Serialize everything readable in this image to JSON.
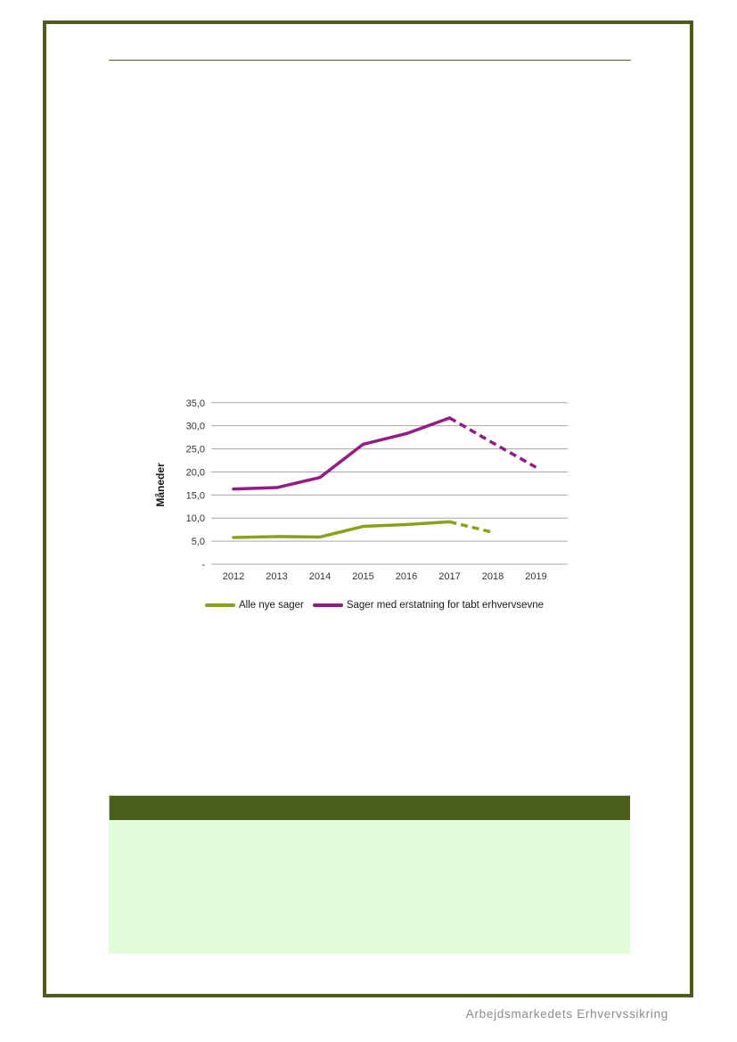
{
  "page": {
    "footer_brand": "Arbejdsmarkedets Erhvervssikring"
  },
  "colors": {
    "frame": "#4c5c1d",
    "top_rule": "#565f1e",
    "header_bar": "#4a5d1d",
    "highlight_box": "#e0fbd7",
    "footer_text": "#8c8c8c",
    "gridline": "#a6a6a6",
    "axis_text": "#333333"
  },
  "chart_data": {
    "type": "line",
    "x": [
      "2012",
      "2013",
      "2014",
      "2015",
      "2016",
      "2017",
      "2018",
      "2019"
    ],
    "ylabel": "Måneder",
    "xlabel": "",
    "title": "",
    "ylim": [
      0,
      35
    ],
    "grid": true,
    "legend_position": "bottom",
    "yticks": {
      "values": [
        35,
        30,
        25,
        20,
        15,
        10,
        5,
        0
      ],
      "labels": [
        "35,0",
        "30,0",
        "25,0",
        "20,0",
        "15,0",
        "10,0",
        "5,0",
        "-"
      ]
    },
    "series": [
      {
        "name": "Alle nye sager",
        "color": "#8ca019",
        "values": [
          5.8,
          6.0,
          5.9,
          8.2,
          8.6,
          9.2,
          6.9,
          null
        ],
        "dashed_from_index": 5
      },
      {
        "name": "Sager med erstatning for tabt erhvervsevne",
        "color": "#951b87",
        "values": [
          16.3,
          16.6,
          18.8,
          26.0,
          28.3,
          31.7,
          26.3,
          21.0
        ],
        "dashed_from_index": 5
      }
    ]
  }
}
